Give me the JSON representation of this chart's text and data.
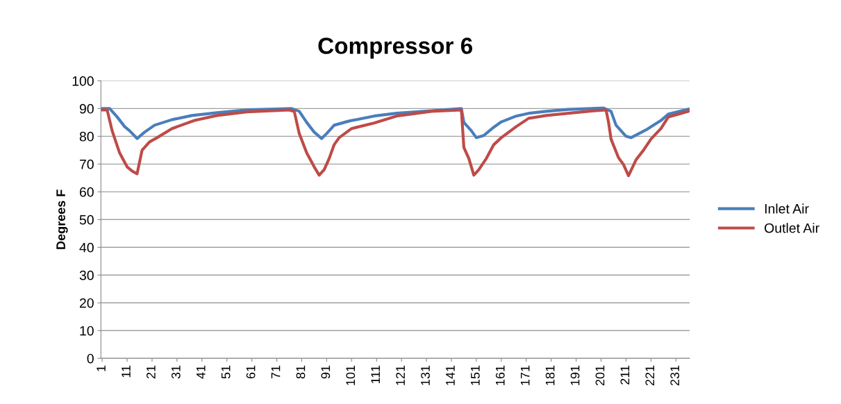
{
  "chart_data": {
    "type": "line",
    "title": "Compressor 6",
    "ylabel": "Degrees F",
    "xlim": [
      0.5,
      236.5
    ],
    "xticks": [
      1,
      11,
      21,
      31,
      41,
      51,
      61,
      71,
      81,
      91,
      101,
      111,
      121,
      131,
      141,
      151,
      161,
      171,
      181,
      191,
      201,
      211,
      221,
      231
    ],
    "ylim": [
      0,
      100
    ],
    "yticks": [
      0,
      10,
      20,
      30,
      40,
      50,
      60,
      70,
      80,
      90,
      100
    ],
    "grid": "y",
    "legend": "right",
    "marker": "none",
    "line_style": "solid",
    "series": [
      {
        "name": "Inlet Air",
        "color": "#4a7ebb",
        "x": [
          1,
          4,
          7,
          10,
          12,
          15,
          18,
          22,
          29,
          37,
          47,
          59,
          70,
          77,
          80,
          83,
          86,
          89,
          91,
          94,
          100,
          110,
          119,
          133,
          145,
          146,
          149,
          151,
          154,
          158,
          161,
          167,
          172,
          179,
          188,
          202,
          205,
          207,
          211,
          213,
          219,
          225,
          228,
          236
        ],
        "values": [
          90,
          90,
          87,
          83.5,
          82,
          79.2,
          81.5,
          84,
          86,
          87.5,
          88.5,
          89.5,
          89.8,
          90,
          89,
          85,
          81.5,
          79.2,
          81,
          84,
          85.5,
          87.3,
          88.3,
          89.2,
          90,
          85,
          82,
          79.5,
          80.3,
          83.3,
          85.2,
          87.3,
          88.3,
          89,
          89.7,
          90.2,
          89,
          84,
          80,
          79.5,
          82.3,
          85.7,
          88,
          89.8
        ]
      },
      {
        "name": "Outlet Air",
        "color": "#be4b48",
        "x": [
          1,
          3,
          5,
          8,
          11,
          13,
          15,
          17,
          20,
          23,
          29,
          38,
          47,
          59,
          76,
          78,
          80,
          83,
          86,
          88,
          90,
          92,
          94,
          96,
          101,
          110,
          119,
          133,
          145,
          146,
          148,
          150,
          152,
          155,
          158,
          161,
          167,
          172,
          179,
          188,
          198,
          203,
          204,
          205,
          208,
          210,
          212,
          215,
          218,
          221,
          225,
          228,
          232,
          236
        ],
        "values": [
          89.5,
          89.5,
          82,
          74,
          69,
          67.5,
          66.5,
          75,
          78,
          79.5,
          82.8,
          85.7,
          87.5,
          88.8,
          89.5,
          89,
          81,
          74,
          69,
          66,
          68,
          72,
          77,
          79.5,
          82.8,
          84.8,
          87.3,
          89,
          89.5,
          76,
          72,
          66,
          68,
          72,
          77,
          79.5,
          83.5,
          86.5,
          87.5,
          88.3,
          89.2,
          89.5,
          85,
          79,
          72.3,
          69.8,
          65.8,
          71.5,
          75,
          79,
          82.8,
          87,
          88,
          89
        ]
      }
    ]
  }
}
